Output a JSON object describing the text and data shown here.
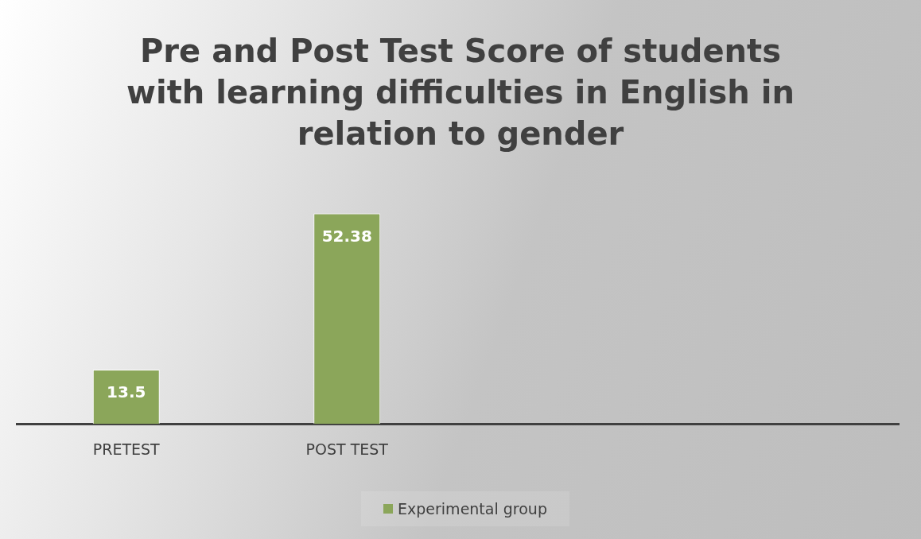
{
  "chart_data": {
    "type": "bar",
    "title": "Pre and Post Test Score of students with learning difficulties in English in relation to gender",
    "categories": [
      "PRETEST",
      "POST TEST",
      null,
      null
    ],
    "series": [
      {
        "name": "Experimental group",
        "color": "#8ba65a",
        "values": [
          13.5,
          52.38,
          null,
          null
        ]
      }
    ],
    "tick_labels": "x",
    "data_labels": true,
    "grid": false,
    "legend": "bottom"
  }
}
